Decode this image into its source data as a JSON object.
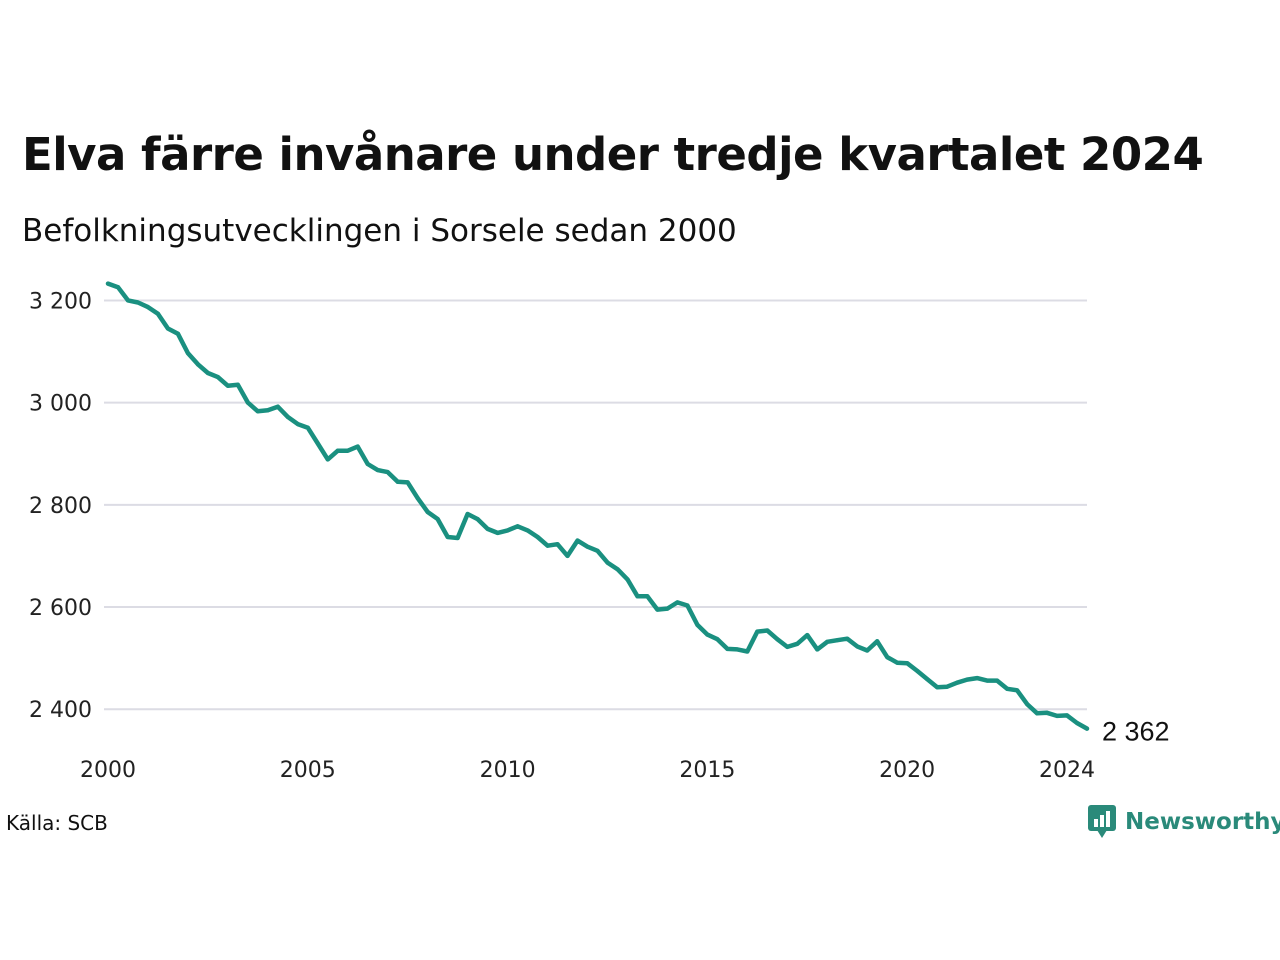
{
  "header": {
    "title": "Elva färre invånare under tredje kvartalet 2024",
    "subtitle": "Befolkningsutvecklingen i Sorsele sedan 2000"
  },
  "footer": {
    "source": "Källa: SCB",
    "brand": "Newsworthy"
  },
  "colors": {
    "line": "#1a9080",
    "grid": "#dcdce4",
    "brand": "#2a8a7a"
  },
  "chart_data": {
    "type": "line",
    "title": "Elva färre invånare under tredje kvartalet 2024",
    "subtitle": "Befolkningsutvecklingen i Sorsele sedan 2000",
    "xlabel": "",
    "ylabel": "",
    "x_ticks": [
      2000,
      2005,
      2010,
      2015,
      2020,
      2024
    ],
    "y_ticks": [
      2400,
      2600,
      2800,
      3000,
      3200
    ],
    "y_tick_labels": [
      "2 400",
      "2 600",
      "2 800",
      "3 000",
      "3 200"
    ],
    "x_tick_labels": [
      "2000",
      "2005",
      "2010",
      "2015",
      "2020",
      "2024"
    ],
    "xlim": [
      2000,
      2024.5
    ],
    "ylim": [
      2330,
      3240
    ],
    "grid": "horizontal",
    "end_label": "2 362",
    "series": [
      {
        "x": [
          2000.0,
          2000.25,
          2000.5,
          2000.75,
          2001.0,
          2001.25,
          2001.5,
          2001.75,
          2002.0,
          2002.25,
          2002.5,
          2002.75,
          2003.0,
          2003.25,
          2003.5,
          2003.75,
          2004.0,
          2004.25,
          2004.5,
          2004.75,
          2005.0,
          2005.25,
          2005.5,
          2005.75,
          2006.0,
          2006.25,
          2006.5,
          2006.75,
          2007.0,
          2007.25,
          2007.5,
          2007.75,
          2008.0,
          2008.25,
          2008.5,
          2008.75,
          2009.0,
          2009.25,
          2009.5,
          2009.75,
          2010.0,
          2010.25,
          2010.5,
          2010.75,
          2011.0,
          2011.25,
          2011.5,
          2011.75,
          2012.0,
          2012.25,
          2012.5,
          2012.75,
          2013.0,
          2013.25,
          2013.5,
          2013.75,
          2014.0,
          2014.25,
          2014.5,
          2014.75,
          2015.0,
          2015.25,
          2015.5,
          2015.75,
          2016.0,
          2016.25,
          2016.5,
          2016.75,
          2017.0,
          2017.25,
          2017.5,
          2017.75,
          2018.0,
          2018.25,
          2018.5,
          2018.75,
          2019.0,
          2019.25,
          2019.5,
          2019.75,
          2020.0,
          2020.25,
          2020.5,
          2020.75,
          2021.0,
          2021.25,
          2021.5,
          2021.75,
          2022.0,
          2022.25,
          2022.5,
          2022.75,
          2023.0,
          2023.25,
          2023.5,
          2023.75,
          2024.0,
          2024.25,
          2024.5
        ],
        "values": [
          3233,
          3226,
          3200,
          3196,
          3187,
          3174,
          3145,
          3135,
          3097,
          3075,
          3058,
          3050,
          3033,
          3035,
          3000,
          2983,
          2985,
          2992,
          2972,
          2958,
          2951,
          2920,
          2889,
          2906,
          2906,
          2914,
          2880,
          2868,
          2864,
          2845,
          2844,
          2813,
          2786,
          2772,
          2737,
          2735,
          2782,
          2772,
          2753,
          2745,
          2750,
          2758,
          2750,
          2737,
          2720,
          2723,
          2700,
          2730,
          2718,
          2710,
          2687,
          2674,
          2654,
          2621,
          2621,
          2595,
          2597,
          2609,
          2603,
          2565,
          2546,
          2537,
          2518,
          2517,
          2513,
          2552,
          2554,
          2537,
          2522,
          2528,
          2545,
          2517,
          2532,
          2535,
          2538,
          2523,
          2515,
          2533,
          2502,
          2491,
          2490,
          2475,
          2459,
          2443,
          2444,
          2452,
          2458,
          2461,
          2456,
          2456,
          2440,
          2437,
          2410,
          2392,
          2393,
          2387,
          2388,
          2373,
          2362
        ]
      }
    ]
  }
}
